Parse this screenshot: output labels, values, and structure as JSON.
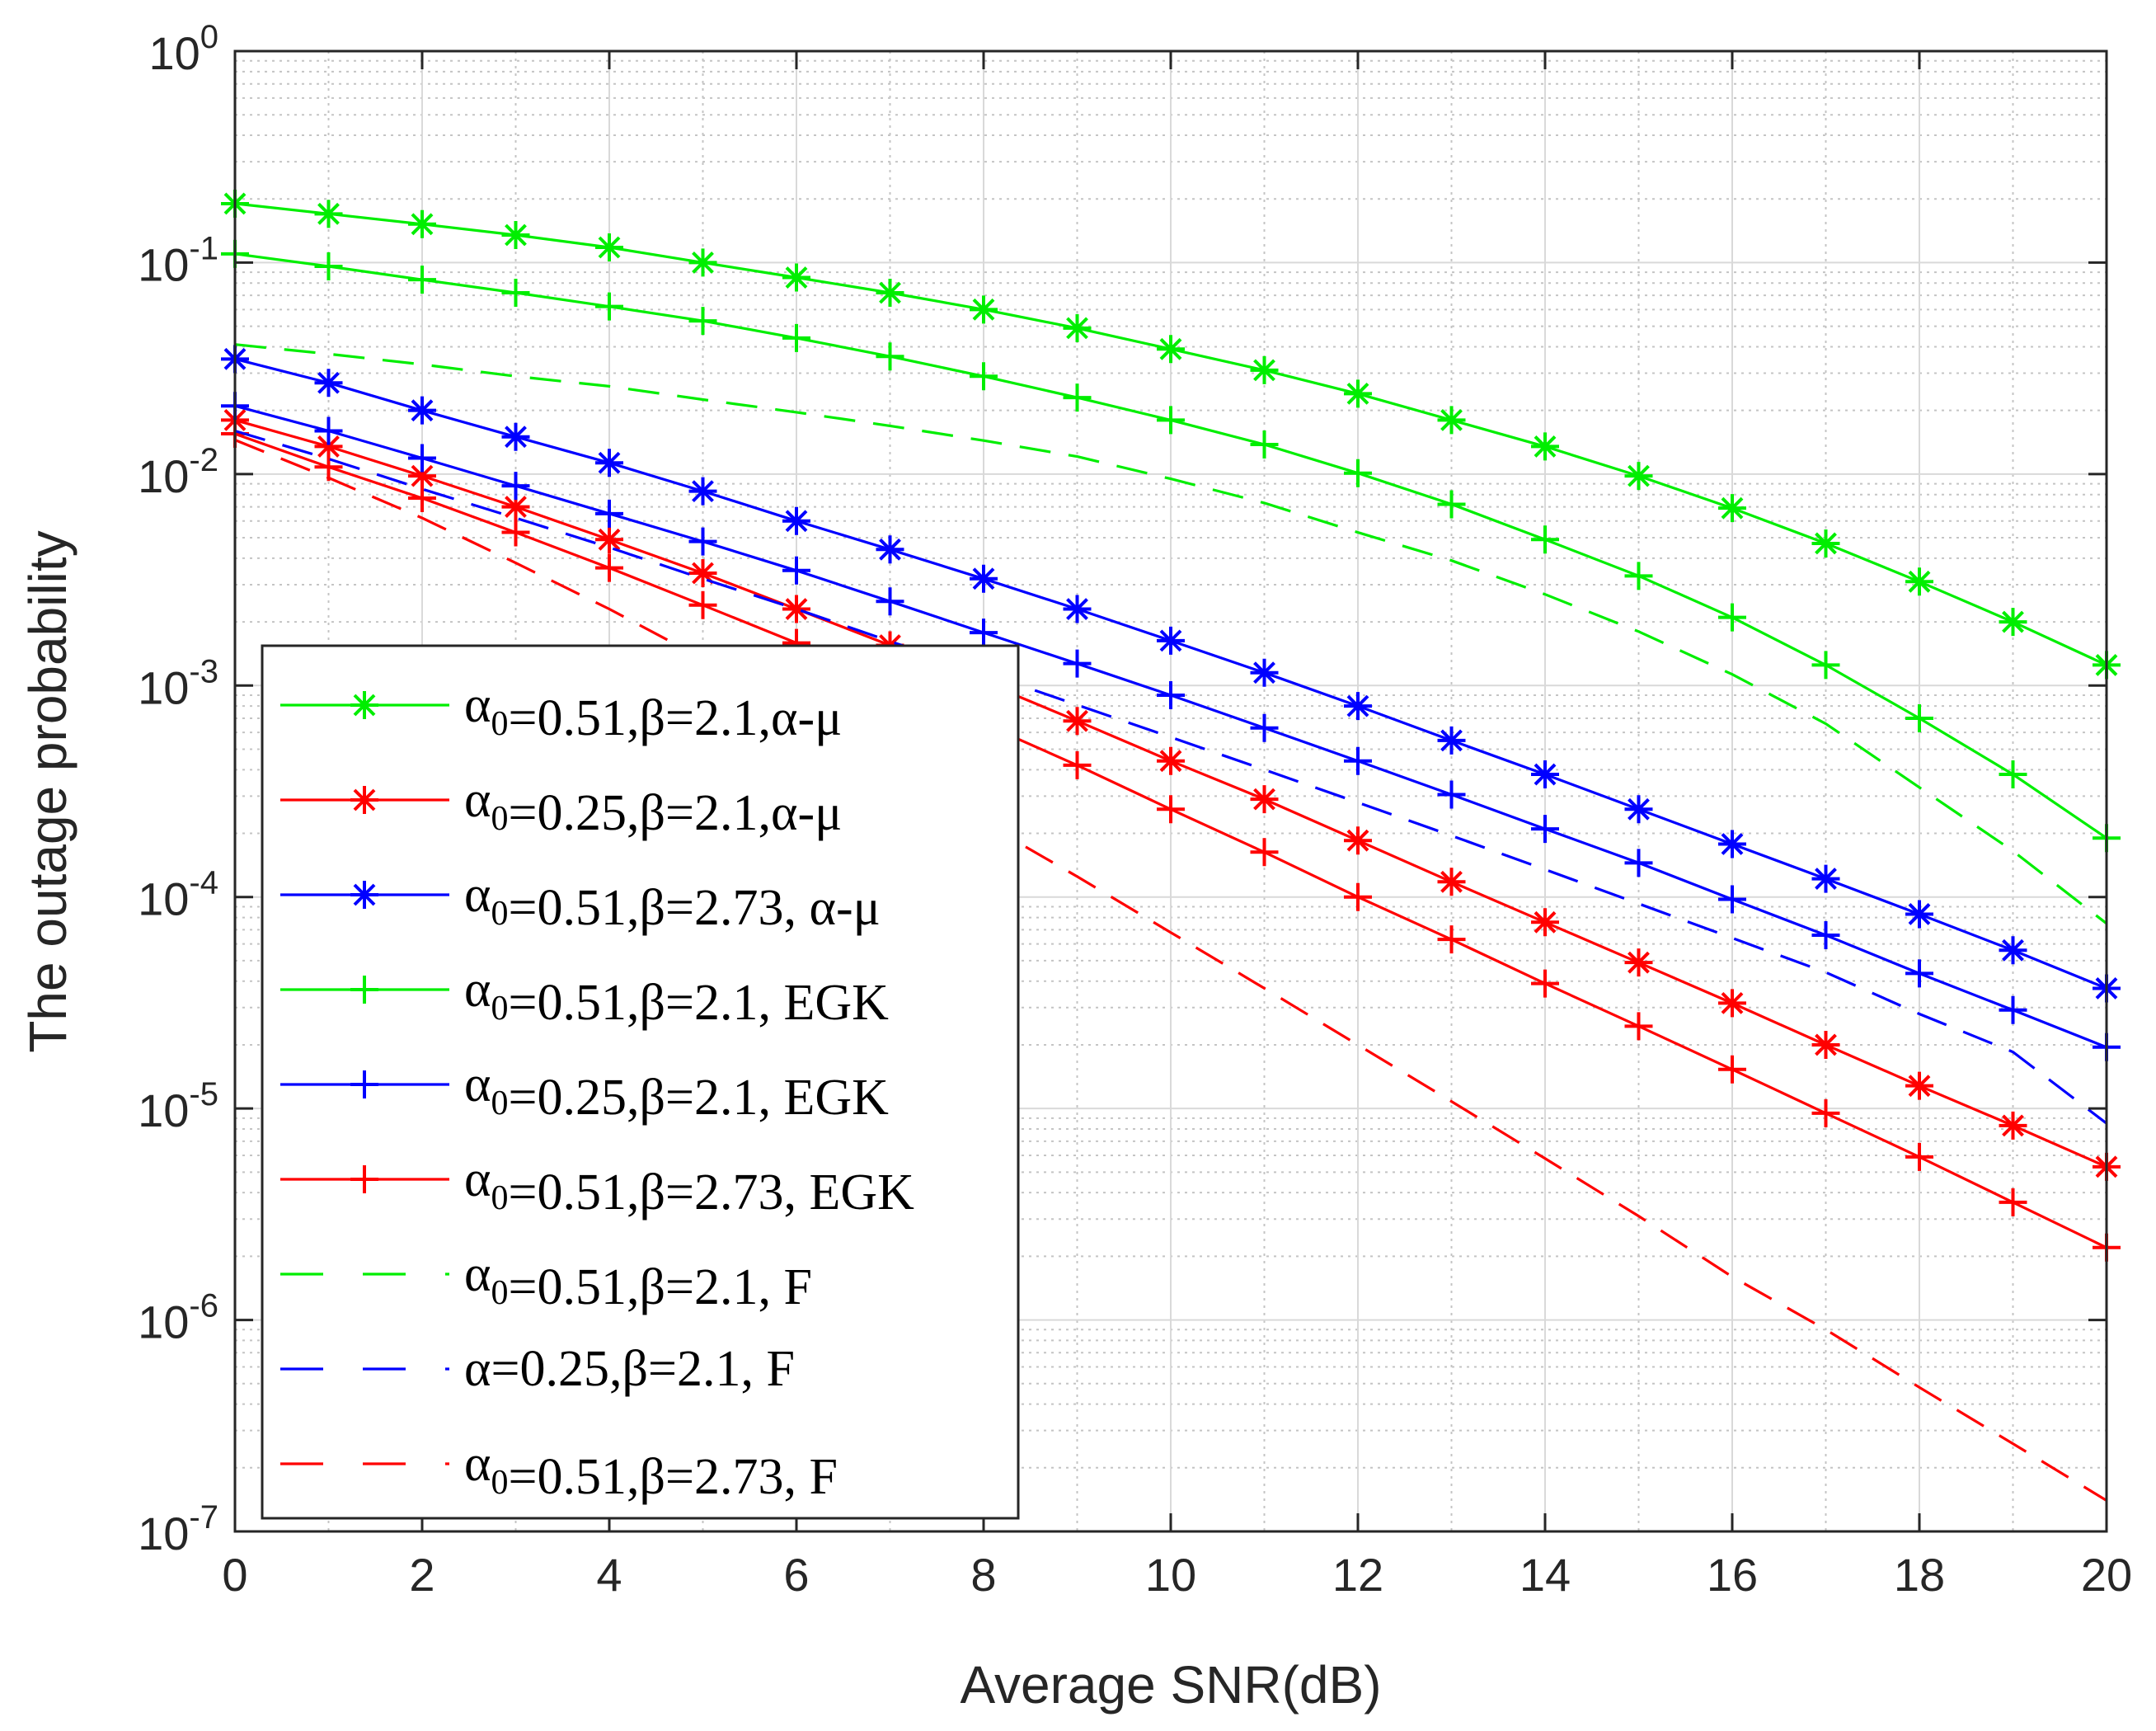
{
  "chart_data": {
    "type": "line",
    "xlabel": "Average SNR(dB)",
    "ylabel": "The outage probability",
    "xlim": [
      0,
      20
    ],
    "ylim": [
      1e-07,
      1
    ],
    "yscale": "log",
    "grid": true,
    "minor_grid": true,
    "legend_position": "bottom-left",
    "x_ticks": [
      0,
      2,
      4,
      6,
      8,
      10,
      12,
      14,
      16,
      18,
      20
    ],
    "y_ticks": [
      {
        "value": 1,
        "base": "10",
        "exp": "0"
      },
      {
        "value": 0.1,
        "base": "10",
        "exp": "-1"
      },
      {
        "value": 0.01,
        "base": "10",
        "exp": "-2"
      },
      {
        "value": 0.001,
        "base": "10",
        "exp": "-3"
      },
      {
        "value": 0.0001,
        "base": "10",
        "exp": "-4"
      },
      {
        "value": 1e-05,
        "base": "10",
        "exp": "-5"
      },
      {
        "value": 1e-06,
        "base": "10",
        "exp": "-6"
      },
      {
        "value": 1e-07,
        "base": "10",
        "exp": "-7"
      }
    ],
    "x": [
      0,
      1,
      2,
      3,
      4,
      5,
      6,
      7,
      8,
      9,
      10,
      11,
      12,
      13,
      14,
      15,
      16,
      17,
      18,
      19,
      20
    ],
    "series": [
      {
        "legend": [
          {
            "t": "α",
            "s": "0"
          },
          {
            "t": "=0.51,β=2.1,α-μ"
          }
        ],
        "color": "#00ee00",
        "marker": "asterisk",
        "dash": "solid",
        "y": [
          0.19,
          0.17,
          0.152,
          0.135,
          0.118,
          0.1,
          0.085,
          0.072,
          0.06,
          0.049,
          0.039,
          0.031,
          0.024,
          0.018,
          0.0135,
          0.0098,
          0.0069,
          0.0047,
          0.0031,
          0.002,
          0.00125
        ]
      },
      {
        "legend": [
          {
            "t": "α",
            "s": "0"
          },
          {
            "t": "=0.25,β=2.1,α-μ"
          }
        ],
        "color": "#ff0000",
        "marker": "asterisk",
        "dash": "solid",
        "y": [
          0.018,
          0.0135,
          0.0098,
          0.007,
          0.0049,
          0.0034,
          0.0023,
          0.00155,
          0.00104,
          0.00068,
          0.00044,
          0.00029,
          0.000185,
          0.000118,
          7.6e-05,
          4.9e-05,
          3.15e-05,
          2e-05,
          1.28e-05,
          8.3e-06,
          5.3e-06
        ]
      },
      {
        "legend": [
          {
            "t": "α",
            "s": "0"
          },
          {
            "t": "=0.51,β=2.73, α-μ"
          }
        ],
        "color": "#0000ff",
        "marker": "asterisk",
        "dash": "solid",
        "y": [
          0.035,
          0.027,
          0.02,
          0.015,
          0.0113,
          0.0083,
          0.006,
          0.0044,
          0.0032,
          0.0023,
          0.00163,
          0.00115,
          0.0008,
          0.00055,
          0.00038,
          0.00026,
          0.000178,
          0.000122,
          8.3e-05,
          5.6e-05,
          3.7e-05
        ]
      },
      {
        "legend": [
          {
            "t": "α",
            "s": "0"
          },
          {
            "t": "=0.51,β=2.1, EGK"
          }
        ],
        "color": "#00ee00",
        "marker": "plus",
        "dash": "solid",
        "y": [
          0.11,
          0.096,
          0.083,
          0.072,
          0.062,
          0.053,
          0.044,
          0.036,
          0.029,
          0.023,
          0.018,
          0.0138,
          0.0101,
          0.0072,
          0.0049,
          0.0033,
          0.0021,
          0.00125,
          0.0007,
          0.00038,
          0.00019
        ]
      },
      {
        "legend": [
          {
            "t": "α",
            "s": "0"
          },
          {
            "t": "=0.25,β=2.1, EGK"
          }
        ],
        "color": "#0000ff",
        "marker": "plus",
        "dash": "solid",
        "y": [
          0.021,
          0.016,
          0.0119,
          0.0088,
          0.0065,
          0.0048,
          0.0035,
          0.0025,
          0.00178,
          0.00127,
          0.0009,
          0.00063,
          0.00044,
          0.000305,
          0.00021,
          0.000145,
          9.75e-05,
          6.6e-05,
          4.35e-05,
          2.92e-05,
          1.95e-05
        ]
      },
      {
        "legend": [
          {
            "t": "α",
            "s": "0"
          },
          {
            "t": "=0.51,β=2.73, EGK"
          }
        ],
        "color": "#ff0000",
        "marker": "plus",
        "dash": "solid",
        "y": [
          0.0155,
          0.0108,
          0.0077,
          0.0053,
          0.0036,
          0.0024,
          0.00159,
          0.00104,
          0.00066,
          0.00042,
          0.00026,
          0.000163,
          0.0001,
          6.3e-05,
          3.9e-05,
          2.45e-05,
          1.53e-05,
          9.5e-06,
          5.9e-06,
          3.6e-06,
          2.2e-06
        ]
      },
      {
        "legend": [
          {
            "t": "α",
            "s": "0"
          },
          {
            "t": "=0.51,β=2.1, F"
          }
        ],
        "color": "#00ee00",
        "marker": "none",
        "dash": "dashed",
        "y": [
          0.041,
          0.037,
          0.033,
          0.029,
          0.026,
          0.0225,
          0.0196,
          0.0169,
          0.0144,
          0.0121,
          0.0095,
          0.0073,
          0.0053,
          0.0039,
          0.0027,
          0.0018,
          0.00113,
          0.00066,
          0.00033,
          0.000165,
          7.5e-05
        ]
      },
      {
        "legend": [
          {
            "t": "α=0.25,β=2.1, F"
          }
        ],
        "color": "#0000ff",
        "marker": "none",
        "dash": "dashed",
        "y": [
          0.016,
          0.0118,
          0.0085,
          0.0062,
          0.0045,
          0.0032,
          0.0023,
          0.00162,
          0.00115,
          0.00081,
          0.00057,
          0.0004,
          0.00028,
          0.000195,
          0.000135,
          9.3e-05,
          6.4e-05,
          4.4e-05,
          2.8e-05,
          1.85e-05,
          8.5e-06
        ]
      },
      {
        "legend": [
          {
            "t": "α",
            "s": "0"
          },
          {
            "t": "=0.51,β=2.73, F"
          }
        ],
        "color": "#ff0000",
        "marker": "none",
        "dash": "dashed",
        "y": [
          0.0145,
          0.0096,
          0.0062,
          0.0038,
          0.0023,
          0.00134,
          0.00076,
          0.00042,
          0.000225,
          0.000125,
          6.8e-05,
          3.7e-05,
          2e-05,
          1.08e-05,
          5.8e-06,
          3.1e-06,
          1.6e-06,
          9e-07,
          4.8e-07,
          2.6e-07,
          1.4e-07
        ]
      }
    ]
  }
}
